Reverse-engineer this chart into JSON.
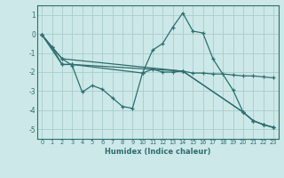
{
  "xlabel": "Humidex (Indice chaleur)",
  "bg_color": "#cde8e8",
  "grid_color": "#a8cccc",
  "line_color": "#2d6e6e",
  "xlim": [
    -0.5,
    23.5
  ],
  "ylim": [
    -5.5,
    1.5
  ],
  "yticks": [
    1,
    0,
    -1,
    -2,
    -3,
    -4,
    -5
  ],
  "xticks": [
    0,
    1,
    2,
    3,
    4,
    5,
    6,
    7,
    8,
    9,
    10,
    11,
    12,
    13,
    14,
    15,
    16,
    17,
    18,
    19,
    20,
    21,
    22,
    23
  ],
  "series": [
    {
      "x": [
        0,
        2,
        14,
        20,
        21,
        22,
        23
      ],
      "y": [
        -0.05,
        -1.3,
        -1.95,
        -4.1,
        -4.55,
        -4.75,
        -4.9
      ]
    },
    {
      "x": [
        0,
        2,
        3,
        14,
        20,
        21,
        22,
        23
      ],
      "y": [
        -0.05,
        -1.6,
        -1.6,
        -1.95,
        -4.1,
        -4.55,
        -4.75,
        -4.9
      ]
    },
    {
      "x": [
        0,
        1,
        2,
        3,
        4,
        5,
        6,
        7,
        8,
        9,
        10,
        11,
        12,
        13,
        14,
        15,
        16,
        17,
        18,
        19,
        20,
        21,
        22,
        23
      ],
      "y": [
        -0.05,
        -0.7,
        -1.3,
        -1.65,
        -3.05,
        -2.7,
        -2.9,
        -3.35,
        -3.8,
        -3.9,
        -2.05,
        -1.85,
        -2.0,
        -2.0,
        -1.95,
        -2.05,
        -2.05,
        -2.1,
        -2.1,
        -2.15,
        -2.2,
        -2.2,
        -2.25,
        -2.3
      ]
    },
    {
      "x": [
        0,
        1,
        2,
        3,
        10,
        11,
        12,
        13,
        14,
        15,
        16,
        17,
        19,
        20,
        21,
        22,
        23
      ],
      "y": [
        -0.05,
        -0.7,
        -1.6,
        -1.6,
        -2.05,
        -0.85,
        -0.5,
        0.35,
        1.1,
        0.15,
        0.05,
        -1.3,
        -2.95,
        -4.1,
        -4.55,
        -4.75,
        -4.9
      ]
    }
  ]
}
